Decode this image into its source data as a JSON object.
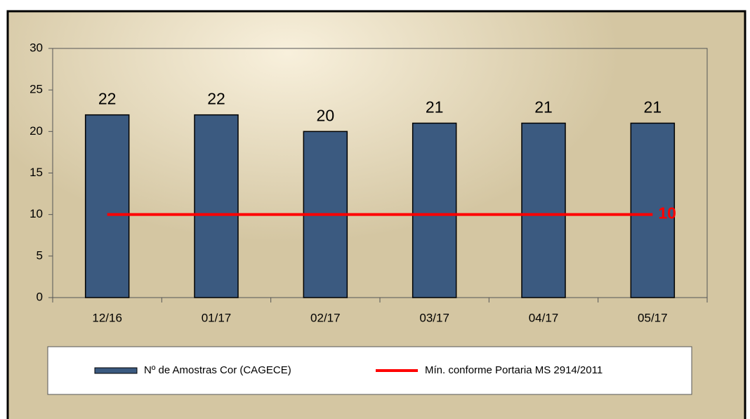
{
  "chart_data": {
    "type": "bar",
    "categories": [
      "12/16",
      "01/17",
      "02/17",
      "03/17",
      "04/17",
      "05/17"
    ],
    "series": [
      {
        "name": "Nº de Amostras Cor (CAGECE)",
        "type": "bar",
        "color": "#3b5a80",
        "values": [
          22,
          22,
          20,
          21,
          21,
          21
        ]
      },
      {
        "name": "Mín. conforme Portaria MS 2914/2011",
        "type": "line",
        "color": "#ff0000",
        "values": [
          10,
          10,
          10,
          10,
          10,
          10
        ],
        "data_labels": "last"
      }
    ],
    "ylim": [
      0,
      30
    ],
    "yticks": [
      0,
      5,
      10,
      15,
      20,
      25,
      30
    ],
    "grid": false,
    "legend": "bottom"
  }
}
